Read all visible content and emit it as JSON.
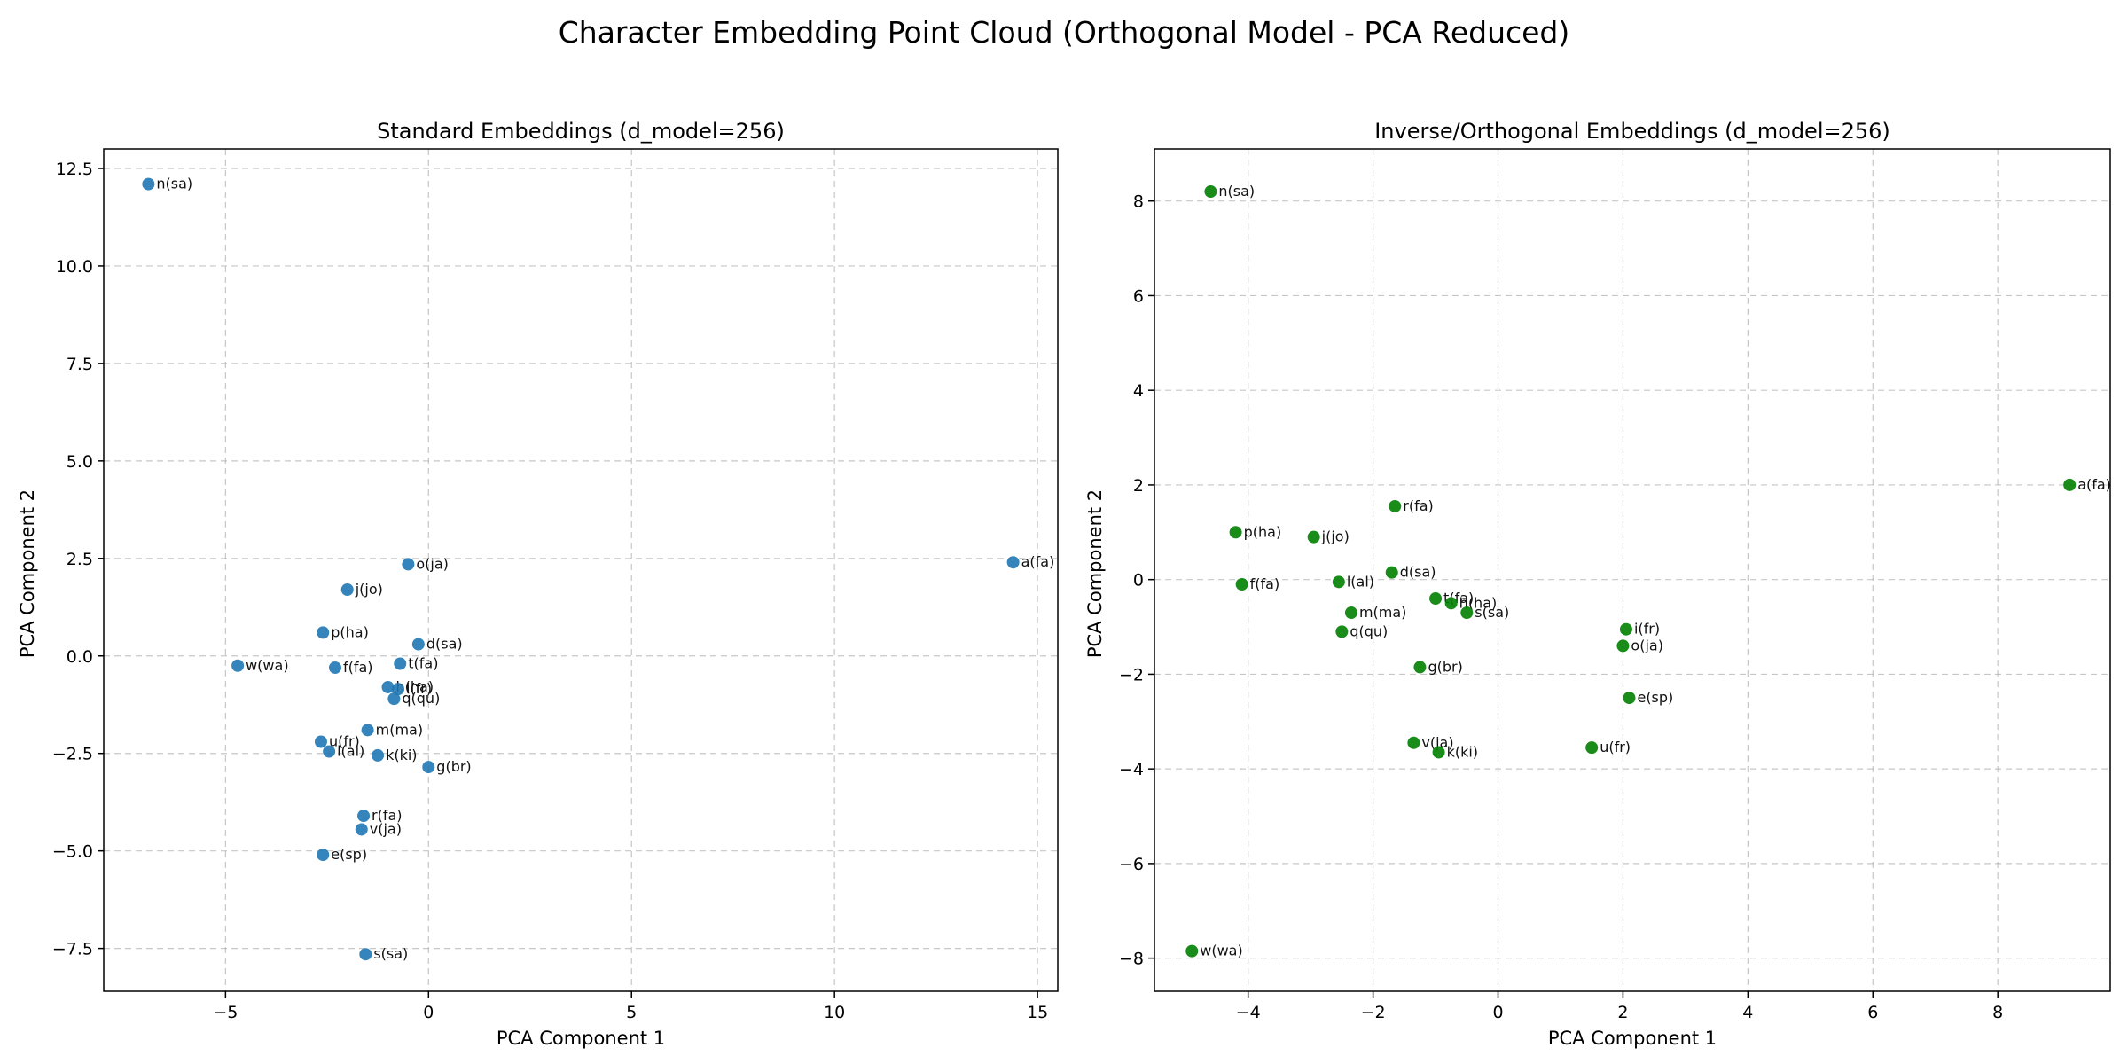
{
  "figure": {
    "suptitle": "Character Embedding Point Cloud (Orthogonal Model - PCA Reduced)"
  },
  "chart_data": [
    {
      "type": "scatter",
      "title": "Standard Embeddings (d_model=256)",
      "xlabel": "PCA Component 1",
      "ylabel": "PCA Component 2",
      "xlim": [
        -8.0,
        15.5
      ],
      "ylim": [
        -8.6,
        13.0
      ],
      "xticks": [
        -5,
        0,
        5,
        10,
        15
      ],
      "yticks": [
        -7.5,
        -5.0,
        -2.5,
        0.0,
        2.5,
        5.0,
        7.5,
        10.0,
        12.5
      ],
      "grid": true,
      "color": "#1f77b4",
      "points": [
        {
          "x": -6.9,
          "y": 12.1,
          "label": "n(sa)"
        },
        {
          "x": 14.4,
          "y": 2.4,
          "label": "a(fa)"
        },
        {
          "x": -0.5,
          "y": 2.35,
          "label": "o(ja)"
        },
        {
          "x": -2.0,
          "y": 1.7,
          "label": "j(jo)"
        },
        {
          "x": -2.6,
          "y": 0.6,
          "label": "p(ha)"
        },
        {
          "x": -0.25,
          "y": 0.3,
          "label": "d(sa)"
        },
        {
          "x": -4.7,
          "y": -0.25,
          "label": "w(wa)"
        },
        {
          "x": -2.3,
          "y": -0.3,
          "label": "f(fa)"
        },
        {
          "x": -0.7,
          "y": -0.2,
          "label": "t(fa)"
        },
        {
          "x": -1.0,
          "y": -0.8,
          "label": "h(ha)"
        },
        {
          "x": -0.75,
          "y": -0.85,
          "label": "i(fr)"
        },
        {
          "x": -0.85,
          "y": -1.1,
          "label": "q(qu)"
        },
        {
          "x": -1.5,
          "y": -1.9,
          "label": "m(ma)"
        },
        {
          "x": -2.65,
          "y": -2.2,
          "label": "u(fr)"
        },
        {
          "x": -2.45,
          "y": -2.45,
          "label": "l(al)"
        },
        {
          "x": -1.25,
          "y": -2.55,
          "label": "k(ki)"
        },
        {
          "x": 0.0,
          "y": -2.85,
          "label": "g(br)"
        },
        {
          "x": -1.6,
          "y": -4.1,
          "label": "r(fa)"
        },
        {
          "x": -1.65,
          "y": -4.45,
          "label": "v(ja)"
        },
        {
          "x": -2.6,
          "y": -5.1,
          "label": "e(sp)"
        },
        {
          "x": -1.55,
          "y": -7.65,
          "label": "s(sa)"
        }
      ]
    },
    {
      "type": "scatter",
      "title": "Inverse/Orthogonal Embeddings (d_model=256)",
      "xlabel": "PCA Component 1",
      "ylabel": "PCA Component 2",
      "xlim": [
        -5.5,
        9.8
      ],
      "ylim": [
        -8.7,
        9.1
      ],
      "xticks": [
        -4,
        -2,
        0,
        2,
        4,
        6,
        8
      ],
      "yticks": [
        -8,
        -6,
        -4,
        -2,
        0,
        2,
        4,
        6,
        8
      ],
      "grid": true,
      "color": "#008000",
      "points": [
        {
          "x": -4.6,
          "y": 8.2,
          "label": "n(sa)"
        },
        {
          "x": 9.15,
          "y": 2.0,
          "label": "a(fa)"
        },
        {
          "x": -1.65,
          "y": 1.55,
          "label": "r(fa)"
        },
        {
          "x": -4.2,
          "y": 1.0,
          "label": "p(ha)"
        },
        {
          "x": -2.95,
          "y": 0.9,
          "label": "j(jo)"
        },
        {
          "x": -1.7,
          "y": 0.15,
          "label": "d(sa)"
        },
        {
          "x": -4.1,
          "y": -0.1,
          "label": "f(fa)"
        },
        {
          "x": -2.55,
          "y": -0.05,
          "label": "l(al)"
        },
        {
          "x": -1.0,
          "y": -0.4,
          "label": "t(fa)"
        },
        {
          "x": -0.75,
          "y": -0.5,
          "label": "h(ha)"
        },
        {
          "x": -2.35,
          "y": -0.7,
          "label": "m(ma)"
        },
        {
          "x": -0.5,
          "y": -0.7,
          "label": "s(sa)"
        },
        {
          "x": -2.5,
          "y": -1.1,
          "label": "q(qu)"
        },
        {
          "x": 2.05,
          "y": -1.05,
          "label": "i(fr)"
        },
        {
          "x": 2.0,
          "y": -1.4,
          "label": "o(ja)"
        },
        {
          "x": -1.25,
          "y": -1.85,
          "label": "g(br)"
        },
        {
          "x": 2.1,
          "y": -2.5,
          "label": "e(sp)"
        },
        {
          "x": -1.35,
          "y": -3.45,
          "label": "v(ja)"
        },
        {
          "x": -0.95,
          "y": -3.65,
          "label": "k(ki)"
        },
        {
          "x": 1.5,
          "y": -3.55,
          "label": "u(fr)"
        },
        {
          "x": -4.9,
          "y": -7.85,
          "label": "w(wa)"
        }
      ]
    }
  ]
}
